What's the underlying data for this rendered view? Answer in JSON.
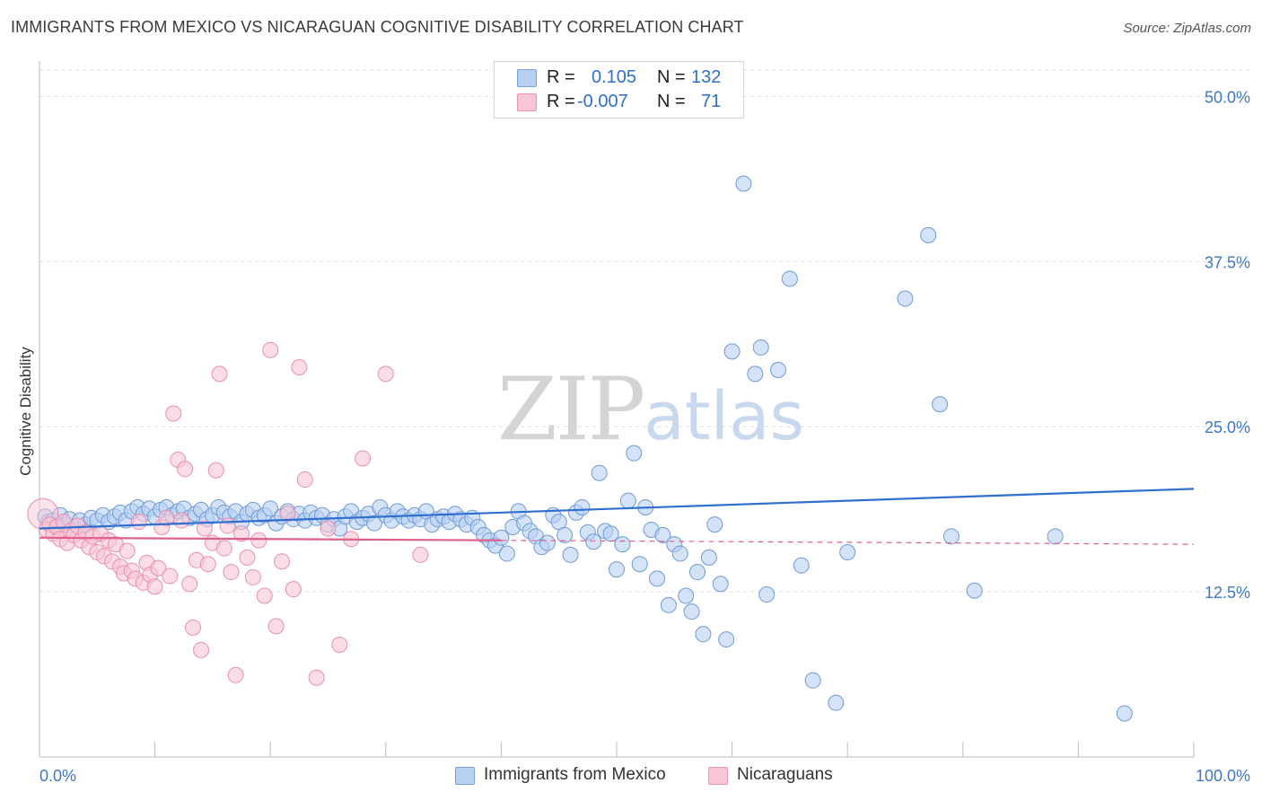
{
  "title": "IMMIGRANTS FROM MEXICO VS NICARAGUAN COGNITIVE DISABILITY CORRELATION CHART",
  "source": "Source: ZipAtlas.com",
  "watermark": {
    "zip": "ZIP",
    "atlas": "atlas"
  },
  "legend": {
    "rows": [
      {
        "r_label": "R =",
        "r_value": "0.105",
        "n_label": "N =",
        "n_value": "132"
      },
      {
        "r_label": "R =",
        "r_value": "-0.007",
        "n_label": "N =",
        "n_value": "71"
      }
    ]
  },
  "bottom_legend": {
    "mexico": "Immigrants from Mexico",
    "nicaraguans": "Nicaraguans"
  },
  "colors": {
    "blue_fill": "#b8d0f2",
    "blue_stroke": "#6f9ad8",
    "blue_line": "#2f6fd0",
    "pink_fill": "#f9c6d6",
    "pink_stroke": "#ea8fae",
    "pink_line": "#e0608c",
    "axis_text": "#3d78c8",
    "grid": "#dddddd"
  },
  "chart_data": {
    "type": "scatter",
    "title": "IMMIGRANTS FROM MEXICO VS NICARAGUAN COGNITIVE DISABILITY CORRELATION CHART",
    "xlabel": "",
    "ylabel": "Cognitive Disability",
    "xlim": [
      0,
      100
    ],
    "ylim": [
      0,
      52
    ],
    "x_tick_labels": [
      "0.0%",
      "100.0%"
    ],
    "y_ticks": [
      12.5,
      25.0,
      37.5,
      50.0
    ],
    "y_tick_labels": [
      "12.5%",
      "25.0%",
      "37.5%",
      "50.0%"
    ],
    "series": [
      {
        "name": "Immigrants from Mexico",
        "color": "blue",
        "trend": {
          "x": [
            0,
            100
          ],
          "y": [
            17.3,
            20.3
          ],
          "solid_until": 100
        },
        "points": [
          [
            0.5,
            18.2
          ],
          [
            0.8,
            17.8
          ],
          [
            1.2,
            17.9
          ],
          [
            1.5,
            17.5
          ],
          [
            1.8,
            18.3
          ],
          [
            2.2,
            17.6
          ],
          [
            2.6,
            18.0
          ],
          [
            3.0,
            17.4
          ],
          [
            3.5,
            17.9
          ],
          [
            4.0,
            17.6
          ],
          [
            4.5,
            18.1
          ],
          [
            5.0,
            17.9
          ],
          [
            5.5,
            18.3
          ],
          [
            6.0,
            17.8
          ],
          [
            6.5,
            18.2
          ],
          [
            7.0,
            18.5
          ],
          [
            7.5,
            17.9
          ],
          [
            8.0,
            18.6
          ],
          [
            8.5,
            18.9
          ],
          [
            9.0,
            18.4
          ],
          [
            9.5,
            18.8
          ],
          [
            10.0,
            18.2
          ],
          [
            10.5,
            18.7
          ],
          [
            11.0,
            18.9
          ],
          [
            11.5,
            18.3
          ],
          [
            12.0,
            18.6
          ],
          [
            12.5,
            18.8
          ],
          [
            13.0,
            18.1
          ],
          [
            13.5,
            18.4
          ],
          [
            14.0,
            18.7
          ],
          [
            14.5,
            18.0
          ],
          [
            15.0,
            18.3
          ],
          [
            15.5,
            18.9
          ],
          [
            16.0,
            18.5
          ],
          [
            16.5,
            18.2
          ],
          [
            17.0,
            18.6
          ],
          [
            17.5,
            17.8
          ],
          [
            18.0,
            18.4
          ],
          [
            18.5,
            18.7
          ],
          [
            19.0,
            18.1
          ],
          [
            19.5,
            18.3
          ],
          [
            20.0,
            18.8
          ],
          [
            20.5,
            17.7
          ],
          [
            21.0,
            18.2
          ],
          [
            21.5,
            18.6
          ],
          [
            22.0,
            18.0
          ],
          [
            22.5,
            18.4
          ],
          [
            23.0,
            17.9
          ],
          [
            23.5,
            18.5
          ],
          [
            24.0,
            18.1
          ],
          [
            24.5,
            18.3
          ],
          [
            25.0,
            17.6
          ],
          [
            25.5,
            18.0
          ],
          [
            26.0,
            17.3
          ],
          [
            26.5,
            18.2
          ],
          [
            27.0,
            18.6
          ],
          [
            27.5,
            17.8
          ],
          [
            28.0,
            18.1
          ],
          [
            28.5,
            18.4
          ],
          [
            29.0,
            17.7
          ],
          [
            29.5,
            18.9
          ],
          [
            30.0,
            18.3
          ],
          [
            30.5,
            17.9
          ],
          [
            31.0,
            18.6
          ],
          [
            31.5,
            18.2
          ],
          [
            32.0,
            17.9
          ],
          [
            32.5,
            18.3
          ],
          [
            33.0,
            18.0
          ],
          [
            33.5,
            18.6
          ],
          [
            34.0,
            17.6
          ],
          [
            34.5,
            18.0
          ],
          [
            35.0,
            18.2
          ],
          [
            35.5,
            17.8
          ],
          [
            36.0,
            18.4
          ],
          [
            36.5,
            18.0
          ],
          [
            37.0,
            17.6
          ],
          [
            37.5,
            18.1
          ],
          [
            38.0,
            17.4
          ],
          [
            38.5,
            16.8
          ],
          [
            39.0,
            16.4
          ],
          [
            39.5,
            16.0
          ],
          [
            40.0,
            16.6
          ],
          [
            40.5,
            15.4
          ],
          [
            41.0,
            17.4
          ],
          [
            41.5,
            18.6
          ],
          [
            42.0,
            17.7
          ],
          [
            42.5,
            17.1
          ],
          [
            43.0,
            16.7
          ],
          [
            43.5,
            15.9
          ],
          [
            44.0,
            16.2
          ],
          [
            44.5,
            18.3
          ],
          [
            45.0,
            17.8
          ],
          [
            45.5,
            16.8
          ],
          [
            46.0,
            15.3
          ],
          [
            46.5,
            18.5
          ],
          [
            47.0,
            18.9
          ],
          [
            47.5,
            17.0
          ],
          [
            48.0,
            16.3
          ],
          [
            48.5,
            21.5
          ],
          [
            49.0,
            17.1
          ],
          [
            49.5,
            16.9
          ],
          [
            50.0,
            14.2
          ],
          [
            50.5,
            16.1
          ],
          [
            51.0,
            19.4
          ],
          [
            51.5,
            23.0
          ],
          [
            52.0,
            14.6
          ],
          [
            52.5,
            18.9
          ],
          [
            53.0,
            17.2
          ],
          [
            53.5,
            13.5
          ],
          [
            54.0,
            16.8
          ],
          [
            54.5,
            11.5
          ],
          [
            55.0,
            16.1
          ],
          [
            55.5,
            15.4
          ],
          [
            56.0,
            12.2
          ],
          [
            56.5,
            11.0
          ],
          [
            57.0,
            14.0
          ],
          [
            57.5,
            9.3
          ],
          [
            58.0,
            15.1
          ],
          [
            58.5,
            17.6
          ],
          [
            59.0,
            13.1
          ],
          [
            59.5,
            8.9
          ],
          [
            60.0,
            30.7
          ],
          [
            61.0,
            43.4
          ],
          [
            62.0,
            29.0
          ],
          [
            62.5,
            31.0
          ],
          [
            63.0,
            12.3
          ],
          [
            64.0,
            29.3
          ],
          [
            65.0,
            36.2
          ],
          [
            66.0,
            14.5
          ],
          [
            67.0,
            5.8
          ],
          [
            69.0,
            4.1
          ],
          [
            70.0,
            15.5
          ],
          [
            75.0,
            34.7
          ],
          [
            77.0,
            39.5
          ],
          [
            78.0,
            26.7
          ],
          [
            79.0,
            16.7
          ],
          [
            81.0,
            12.6
          ],
          [
            88.0,
            16.7
          ],
          [
            94.0,
            3.3
          ]
        ]
      },
      {
        "name": "Nicaraguans",
        "color": "pink",
        "trend": {
          "x": [
            0,
            100
          ],
          "y": [
            16.6,
            16.1
          ],
          "solid_until": 40
        },
        "points": [
          [
            0.3,
            18.4
          ],
          [
            0.6,
            17.2
          ],
          [
            0.9,
            17.6
          ],
          [
            1.2,
            16.9
          ],
          [
            1.5,
            17.4
          ],
          [
            1.8,
            16.5
          ],
          [
            2.1,
            17.8
          ],
          [
            2.4,
            16.2
          ],
          [
            2.7,
            17.1
          ],
          [
            3.0,
            16.8
          ],
          [
            3.3,
            17.5
          ],
          [
            3.6,
            16.4
          ],
          [
            4.0,
            17.0
          ],
          [
            4.3,
            15.9
          ],
          [
            4.6,
            16.7
          ],
          [
            5.0,
            15.5
          ],
          [
            5.3,
            16.9
          ],
          [
            5.6,
            15.2
          ],
          [
            6.0,
            16.4
          ],
          [
            6.3,
            14.8
          ],
          [
            6.6,
            16.1
          ],
          [
            7.0,
            14.4
          ],
          [
            7.3,
            13.9
          ],
          [
            7.6,
            15.6
          ],
          [
            8.0,
            14.1
          ],
          [
            8.3,
            13.5
          ],
          [
            8.6,
            17.8
          ],
          [
            9.0,
            13.2
          ],
          [
            9.3,
            14.7
          ],
          [
            9.6,
            13.8
          ],
          [
            10.0,
            12.9
          ],
          [
            10.3,
            14.3
          ],
          [
            10.6,
            17.4
          ],
          [
            11.0,
            18.1
          ],
          [
            11.3,
            13.7
          ],
          [
            11.6,
            26.0
          ],
          [
            12.0,
            22.5
          ],
          [
            12.3,
            17.9
          ],
          [
            12.6,
            21.8
          ],
          [
            13.0,
            13.1
          ],
          [
            13.3,
            9.8
          ],
          [
            13.6,
            14.9
          ],
          [
            14.0,
            8.1
          ],
          [
            14.3,
            17.3
          ],
          [
            14.6,
            14.6
          ],
          [
            15.0,
            16.2
          ],
          [
            15.3,
            21.7
          ],
          [
            15.6,
            29.0
          ],
          [
            16.0,
            15.8
          ],
          [
            16.3,
            17.5
          ],
          [
            16.6,
            14.0
          ],
          [
            17.0,
            6.2
          ],
          [
            17.5,
            16.9
          ],
          [
            18.0,
            15.1
          ],
          [
            18.5,
            13.6
          ],
          [
            19.0,
            16.4
          ],
          [
            19.5,
            12.2
          ],
          [
            20.0,
            30.8
          ],
          [
            20.5,
            9.9
          ],
          [
            21.0,
            14.8
          ],
          [
            21.5,
            18.4
          ],
          [
            22.0,
            12.7
          ],
          [
            22.5,
            29.5
          ],
          [
            23.0,
            21.0
          ],
          [
            24.0,
            6.0
          ],
          [
            25.0,
            17.3
          ],
          [
            26.0,
            8.5
          ],
          [
            27.0,
            16.5
          ],
          [
            28.0,
            22.6
          ],
          [
            30.0,
            29.0
          ],
          [
            33.0,
            15.3
          ]
        ]
      }
    ]
  }
}
